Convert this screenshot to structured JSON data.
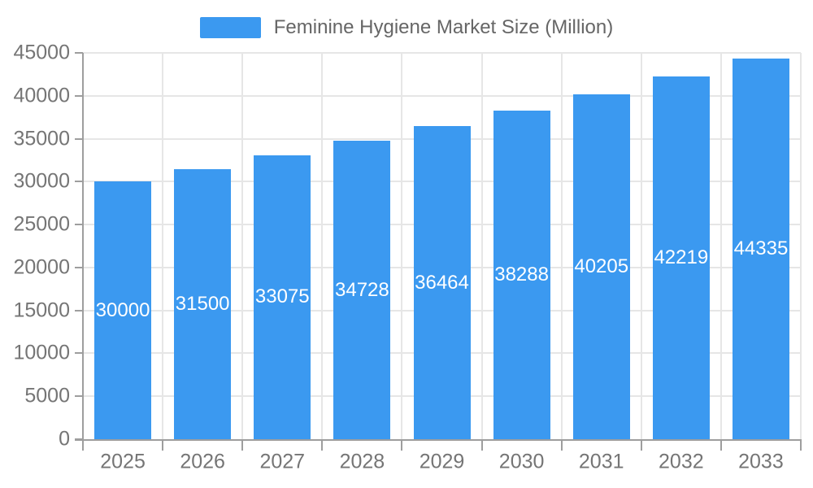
{
  "legend": {
    "label": "Feminine Hygiene Market Size (Million)",
    "swatch_color": "#3b99f0"
  },
  "chart_data": {
    "type": "bar",
    "title": "Feminine Hygiene Market Size (Million)",
    "categories": [
      "2025",
      "2026",
      "2027",
      "2028",
      "2029",
      "2030",
      "2031",
      "2032",
      "2033"
    ],
    "series": [
      {
        "name": "Feminine Hygiene Market Size (Million)",
        "values": [
          30000,
          31500,
          33075,
          34728,
          36464,
          38288,
          40205,
          42219,
          44335
        ]
      }
    ],
    "value_labels": [
      "30000",
      "31500",
      "33075",
      "34728",
      "36464",
      "38288",
      "40205",
      "42219",
      "44335"
    ],
    "xlabel": "",
    "ylabel": "",
    "ylim": [
      0,
      45000
    ],
    "ytick_step": 5000,
    "ytick_labels": [
      "0",
      "5000",
      "10000",
      "15000",
      "20000",
      "25000",
      "30000",
      "35000",
      "40000",
      "45000"
    ],
    "grid": true,
    "legend_position": "top-center",
    "value_label_position": "inside-center",
    "colors": {
      "bar": "#3b99f0",
      "value_label": "#ffffff",
      "axis_label": "#757575",
      "legend_label": "#666666",
      "gridline": "#e6e6e6",
      "axis_line": "#9e9e9e",
      "background": "#ffffff"
    }
  }
}
